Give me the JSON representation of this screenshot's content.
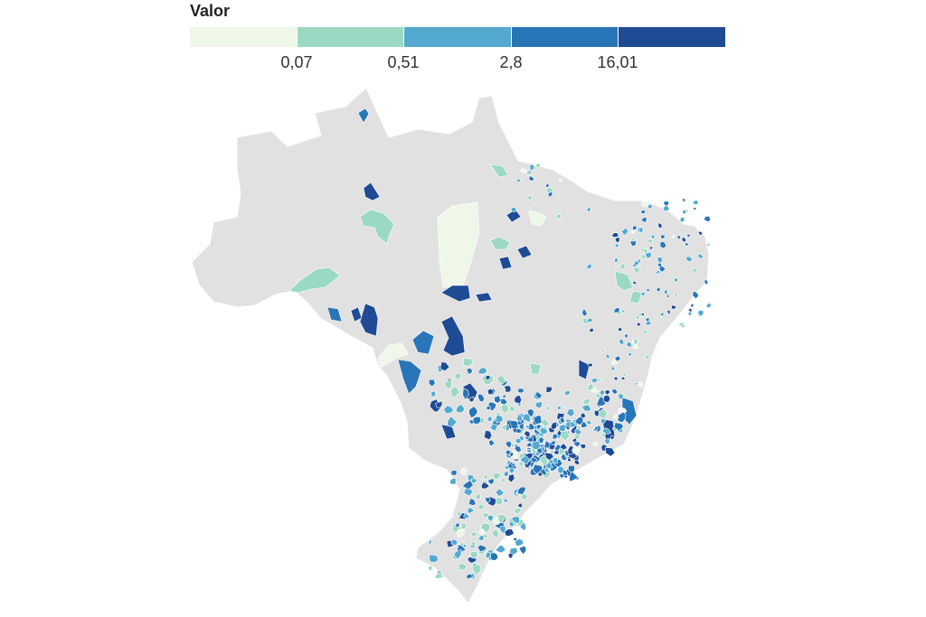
{
  "legend": {
    "title": "Valor",
    "colors": [
      "#eef7e8",
      "#9cd9c2",
      "#53a9d0",
      "#2876b8",
      "#1f4b94"
    ],
    "ticks": [
      "0,07",
      "0,51",
      "2,8",
      "16,01"
    ]
  },
  "map": {
    "base_color": "#e1e1e1",
    "border_color": "#ffffff"
  }
}
